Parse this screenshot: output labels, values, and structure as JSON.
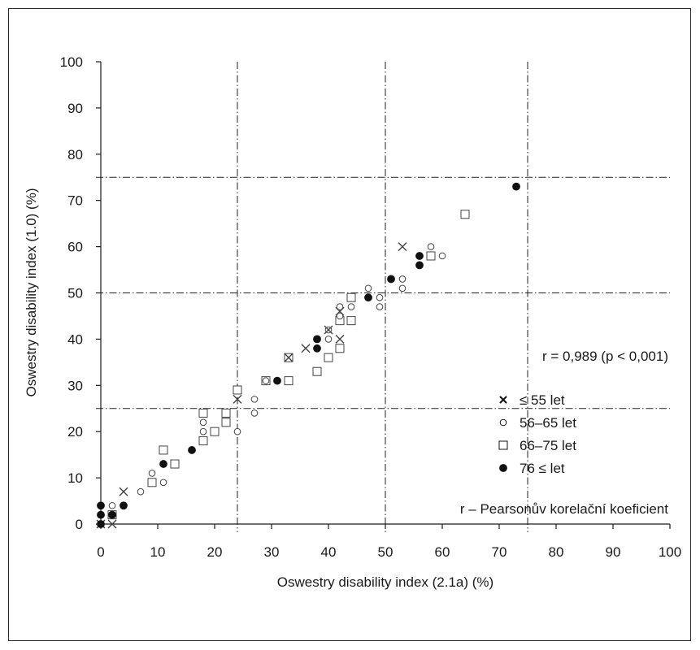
{
  "chart_data": {
    "type": "scatter",
    "title": "",
    "xlabel": "Oswestry disability index (2.1a) (%)",
    "ylabel": "Oswestry disability index (1.0) (%)",
    "xlim": [
      0,
      100
    ],
    "ylim": [
      0,
      100
    ],
    "xticks": [
      "0",
      "10",
      "20",
      "30",
      "40",
      "50",
      "60",
      "70",
      "80",
      "90",
      "100"
    ],
    "yticks": [
      "0",
      "10",
      "20",
      "30",
      "40",
      "50",
      "60",
      "70",
      "80",
      "90",
      "100"
    ],
    "grid": false,
    "legend_position": "right",
    "reference_lines": {
      "vertical": [
        24,
        50,
        75
      ],
      "horizontal": [
        25,
        50,
        75
      ]
    },
    "annotations": {
      "correlation": "r = 0,989 (p < 0,001)",
      "footnote": "r – Pearsonův korelační koeficient"
    },
    "series": [
      {
        "name": "≤ 55 let",
        "marker": "x",
        "color": "#444444",
        "points": [
          [
            0,
            0
          ],
          [
            2,
            0
          ],
          [
            4,
            7
          ],
          [
            24,
            27
          ],
          [
            33,
            36
          ],
          [
            36,
            38
          ],
          [
            40,
            42
          ],
          [
            42,
            40
          ],
          [
            42,
            46
          ],
          [
            53,
            60
          ]
        ]
      },
      {
        "name": "56–65  let",
        "marker": "circle-open",
        "color": "#444444",
        "points": [
          [
            2,
            4
          ],
          [
            7,
            7
          ],
          [
            9,
            11
          ],
          [
            11,
            9
          ],
          [
            18,
            20
          ],
          [
            18,
            22
          ],
          [
            24,
            20
          ],
          [
            27,
            24
          ],
          [
            27,
            27
          ],
          [
            29,
            31
          ],
          [
            38,
            40
          ],
          [
            40,
            40
          ],
          [
            40,
            42
          ],
          [
            42,
            45
          ],
          [
            42,
            47
          ],
          [
            44,
            47
          ],
          [
            47,
            51
          ],
          [
            49,
            47
          ],
          [
            49,
            49
          ],
          [
            53,
            51
          ],
          [
            53,
            53
          ],
          [
            58,
            60
          ],
          [
            60,
            58
          ]
        ]
      },
      {
        "name": "66–75  let",
        "marker": "square-open",
        "color": "#444444",
        "points": [
          [
            2,
            2
          ],
          [
            9,
            9
          ],
          [
            11,
            16
          ],
          [
            13,
            13
          ],
          [
            18,
            18
          ],
          [
            18,
            24
          ],
          [
            20,
            20
          ],
          [
            22,
            22
          ],
          [
            22,
            24
          ],
          [
            24,
            29
          ],
          [
            29,
            31
          ],
          [
            33,
            31
          ],
          [
            33,
            36
          ],
          [
            38,
            33
          ],
          [
            40,
            36
          ],
          [
            42,
            38
          ],
          [
            42,
            44
          ],
          [
            44,
            44
          ],
          [
            44,
            49
          ],
          [
            58,
            58
          ],
          [
            64,
            67
          ]
        ]
      },
      {
        "name": "76 ≤  let",
        "marker": "filled",
        "color": "#111111",
        "points": [
          [
            0,
            0
          ],
          [
            0,
            2
          ],
          [
            0,
            4
          ],
          [
            2,
            2
          ],
          [
            4,
            4
          ],
          [
            11,
            13
          ],
          [
            16,
            16
          ],
          [
            31,
            31
          ],
          [
            38,
            38
          ],
          [
            38,
            40
          ],
          [
            47,
            49
          ],
          [
            51,
            53
          ],
          [
            56,
            56
          ],
          [
            56,
            58
          ],
          [
            73,
            73
          ]
        ]
      }
    ]
  }
}
